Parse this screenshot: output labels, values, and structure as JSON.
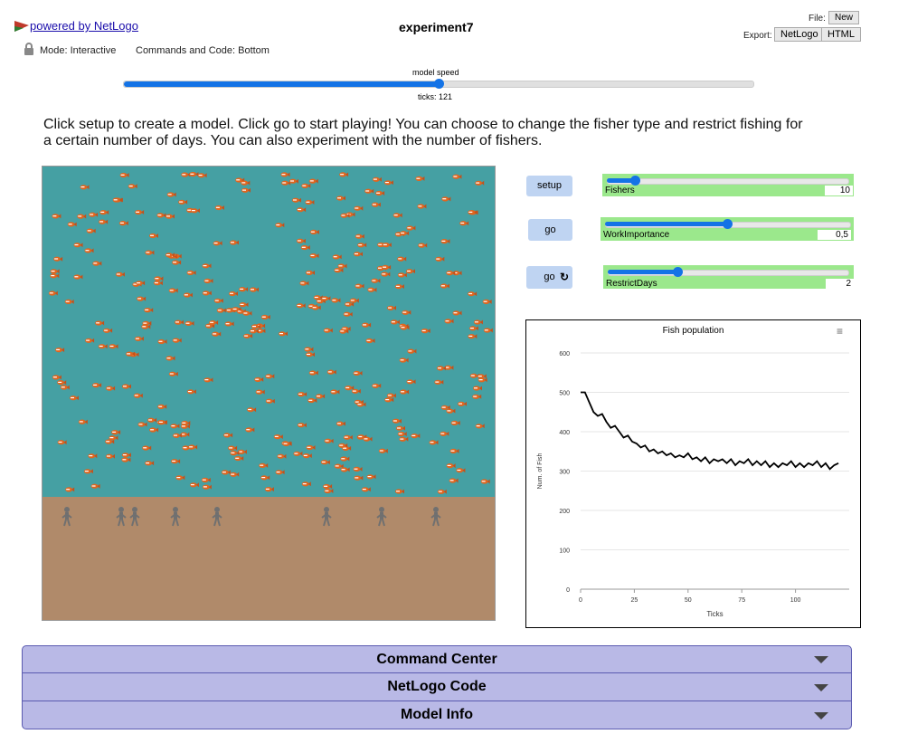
{
  "header": {
    "powered_by": "powered by NetLogo",
    "model_title": "experiment7",
    "mode_label": "Mode: Interactive",
    "commands_label": "Commands and Code: Bottom",
    "file_label": "File:",
    "new_label": "New",
    "export_label": "Export:",
    "export_netlogo": "NetLogo",
    "export_html": "HTML"
  },
  "speed": {
    "label": "model speed",
    "ticks_label": "ticks: 121",
    "value": 0.5
  },
  "description": "Click setup to create a model. Click go to start playing! You can choose to change the fisher type and restrict fishing for a certain number of days. You can also experiment with the number of fishers.",
  "buttons": {
    "setup": "setup",
    "go_once": "go",
    "go_forever": "go"
  },
  "sliders": [
    {
      "name": "Fishers",
      "value": "10",
      "fraction": 0.12
    },
    {
      "name": "WorkImportance",
      "value": "0,5",
      "fraction": 0.5
    },
    {
      "name": "RestrictDays",
      "value": "2",
      "fraction": 0.3
    }
  ],
  "world": {
    "sea_color": "#45a0a3",
    "land_color": "#b08a6a",
    "fisher_count": 10
  },
  "chart_data": {
    "type": "line",
    "title": "Fish population",
    "xlabel": "Ticks",
    "ylabel": "Num. of Fish",
    "xlim": [
      0,
      125
    ],
    "ylim": [
      0,
      600
    ],
    "xticks": [
      0,
      25,
      50,
      75,
      100
    ],
    "yticks": [
      0,
      100,
      200,
      300,
      400,
      500,
      600
    ],
    "series": [
      {
        "color": "#000000",
        "x": [
          0,
          2,
          4,
          6,
          8,
          10,
          12,
          14,
          16,
          18,
          20,
          22,
          24,
          26,
          28,
          30,
          32,
          34,
          36,
          38,
          40,
          42,
          44,
          46,
          48,
          50,
          52,
          54,
          56,
          58,
          60,
          62,
          64,
          66,
          68,
          70,
          72,
          74,
          76,
          78,
          80,
          82,
          84,
          86,
          88,
          90,
          92,
          94,
          96,
          98,
          100,
          102,
          104,
          106,
          108,
          110,
          112,
          114,
          116,
          118,
          120
        ],
        "y": [
          500,
          500,
          475,
          450,
          440,
          445,
          425,
          410,
          415,
          400,
          385,
          390,
          375,
          370,
          360,
          365,
          350,
          355,
          345,
          350,
          340,
          345,
          335,
          340,
          335,
          345,
          330,
          335,
          325,
          335,
          320,
          330,
          325,
          330,
          320,
          330,
          315,
          325,
          320,
          330,
          315,
          325,
          315,
          325,
          310,
          320,
          310,
          320,
          315,
          325,
          310,
          320,
          310,
          320,
          315,
          325,
          310,
          320,
          305,
          315,
          320
        ]
      }
    ]
  },
  "accordion": [
    {
      "label": "Command Center"
    },
    {
      "label": "NetLogo Code"
    },
    {
      "label": "Model Info"
    }
  ],
  "icons": {
    "lock": "lock-icon",
    "logo": "netlogo-logo-icon",
    "forever": "forever-icon",
    "menu": "hamburger-icon",
    "chevron": "chevron-down-icon"
  }
}
